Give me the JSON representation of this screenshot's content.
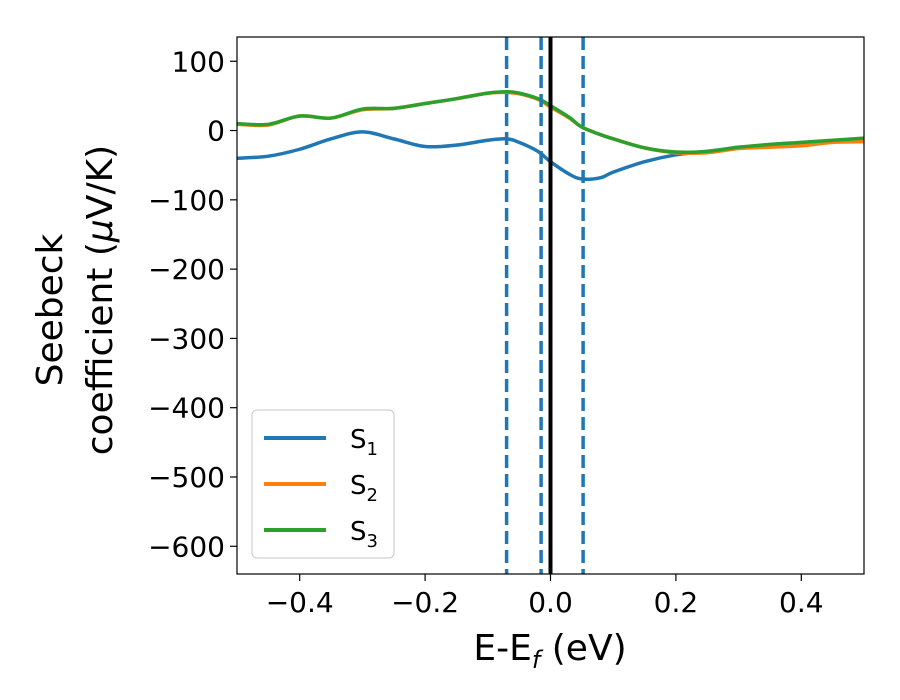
{
  "chart_data": {
    "type": "line",
    "xlabel": {
      "main": "E-E",
      "sub": "f",
      "unit": " (eV)"
    },
    "ylabel": {
      "line1": "Seebeck",
      "line2_pre": "coefficient  (",
      "mu": "μ",
      "line2_post": "V/K)"
    },
    "xlim": [
      -0.5,
      0.5
    ],
    "ylim": [
      -640,
      135
    ],
    "xticks": [
      -0.4,
      -0.2,
      0.0,
      0.2,
      0.4
    ],
    "xtick_labels": [
      "−0.4",
      "−0.2",
      "0.0",
      "0.2",
      "0.4"
    ],
    "yticks": [
      100,
      0,
      -100,
      -200,
      -300,
      -400,
      -500,
      -600
    ],
    "ytick_labels": [
      "100",
      "0",
      "−100",
      "−200",
      "−300",
      "−400",
      "−500",
      "−600"
    ],
    "grid": false,
    "legend_position": "lower-left",
    "vlines": [
      {
        "x": -0.07,
        "style": "dashed",
        "color": "#1f77b4"
      },
      {
        "x": -0.015,
        "style": "dashed",
        "color": "#1f77b4"
      },
      {
        "x": 0.052,
        "style": "dashed",
        "color": "#1f77b4"
      },
      {
        "x": 0.0,
        "style": "solid",
        "color": "#000000"
      }
    ],
    "series": [
      {
        "name": "S",
        "sub": "1",
        "color": "#1f77b4",
        "x": [
          -0.5,
          -0.45,
          -0.4,
          -0.35,
          -0.3,
          -0.25,
          -0.2,
          -0.15,
          -0.1,
          -0.07,
          -0.05,
          -0.02,
          0.0,
          0.03,
          0.05,
          0.08,
          0.1,
          0.15,
          0.2,
          0.25,
          0.3,
          0.35,
          0.4,
          0.45,
          0.5
        ],
        "y": [
          -40,
          -37,
          -27,
          -12,
          -2,
          -12,
          -23,
          -21,
          -14,
          -12,
          -17,
          -30,
          -45,
          -63,
          -70,
          -68,
          -60,
          -45,
          -35,
          -30,
          -25,
          -22,
          -19,
          -16,
          -12
        ]
      },
      {
        "name": "S",
        "sub": "2",
        "color": "#ff7f0e",
        "x": [
          -0.5,
          -0.45,
          -0.4,
          -0.35,
          -0.3,
          -0.25,
          -0.2,
          -0.15,
          -0.1,
          -0.07,
          -0.05,
          -0.02,
          0.0,
          0.03,
          0.05,
          0.08,
          0.1,
          0.15,
          0.2,
          0.25,
          0.3,
          0.35,
          0.4,
          0.45,
          0.5
        ],
        "y": [
          9,
          8,
          21,
          18,
          30,
          32,
          39,
          46,
          54,
          55,
          53,
          45,
          34,
          18,
          5,
          -6,
          -12,
          -25,
          -32,
          -32,
          -26,
          -24,
          -22,
          -17,
          -16
        ]
      },
      {
        "name": "S",
        "sub": "3",
        "color": "#2ca02c",
        "x": [
          -0.5,
          -0.45,
          -0.4,
          -0.35,
          -0.3,
          -0.25,
          -0.2,
          -0.15,
          -0.1,
          -0.07,
          -0.05,
          -0.02,
          0.0,
          0.03,
          0.05,
          0.08,
          0.1,
          0.15,
          0.2,
          0.25,
          0.3,
          0.35,
          0.4,
          0.45,
          0.5
        ],
        "y": [
          10,
          9,
          21,
          18,
          31,
          32,
          39,
          46,
          54,
          56,
          54,
          46,
          36,
          19,
          5,
          -6,
          -12,
          -25,
          -31,
          -30,
          -24,
          -20,
          -17,
          -14,
          -11
        ]
      }
    ]
  }
}
